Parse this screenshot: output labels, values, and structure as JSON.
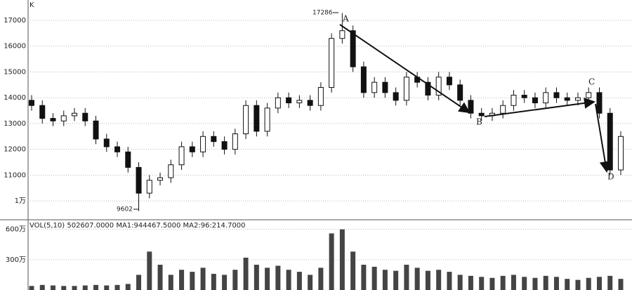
{
  "chart_data": [
    {
      "type": "candlestick",
      "y_axis_label": "K",
      "open": [
        13900,
        13700,
        13200,
        13100,
        13300,
        13400,
        13100,
        12400,
        12100,
        11900,
        11300,
        10300,
        10800,
        10900,
        11400,
        12100,
        11900,
        12500,
        12300,
        12000,
        12600,
        13700,
        12700,
        13600,
        14000,
        13800,
        13900,
        13700,
        14400,
        16300,
        16600,
        15200,
        14200,
        14600,
        14200,
        13900,
        14800,
        14600,
        14100,
        14800,
        14500,
        13900,
        13400,
        13300,
        13400,
        13700,
        14100,
        14000,
        13800,
        14200,
        14000,
        13900,
        14000,
        14200,
        13400,
        11200
      ],
      "high": [
        14100,
        13900,
        13400,
        13500,
        13600,
        13600,
        13300,
        12600,
        12300,
        12100,
        11500,
        11000,
        11100,
        11600,
        12300,
        12300,
        12700,
        12700,
        12500,
        12800,
        13900,
        13900,
        13800,
        14200,
        14200,
        14100,
        14100,
        14600,
        16500,
        17286,
        16800,
        15400,
        14800,
        14800,
        14400,
        15000,
        15000,
        14800,
        15000,
        15000,
        14700,
        14100,
        13600,
        13600,
        13900,
        14300,
        14300,
        14200,
        14400,
        14400,
        14200,
        14200,
        14400,
        14400,
        13600,
        12700
      ],
      "low": [
        13500,
        13000,
        12900,
        12900,
        13100,
        12900,
        12200,
        11900,
        11700,
        11100,
        9602,
        10100,
        10600,
        10700,
        11200,
        11700,
        11700,
        12100,
        11800,
        11800,
        12400,
        12500,
        12500,
        13400,
        13600,
        13600,
        13500,
        13500,
        14200,
        16100,
        15000,
        14000,
        14000,
        14000,
        13700,
        13700,
        14400,
        13900,
        13900,
        14300,
        13700,
        13200,
        13100,
        13100,
        13200,
        13500,
        13800,
        13600,
        13600,
        13800,
        13700,
        13700,
        13800,
        13200,
        11000,
        11000
      ],
      "close": [
        13700,
        13200,
        13100,
        13300,
        13400,
        13100,
        12400,
        12100,
        11900,
        11300,
        10300,
        10800,
        10900,
        11400,
        12100,
        11900,
        12500,
        12300,
        12000,
        12600,
        13700,
        12700,
        13600,
        14000,
        13800,
        13900,
        13700,
        14400,
        16300,
        16600,
        15200,
        14200,
        14600,
        14200,
        13900,
        14800,
        14600,
        14100,
        14800,
        14500,
        13900,
        13400,
        13300,
        13400,
        13700,
        14100,
        14000,
        13800,
        14200,
        14000,
        13900,
        14000,
        14200,
        13400,
        11200,
        12500
      ],
      "colors": {
        "up": "#ffffff",
        "down": "#111111",
        "edge": "#111111"
      },
      "ylim": [
        9350,
        17790
      ],
      "yticks": [
        17000,
        16000,
        15000,
        14000,
        13000,
        12000,
        11000,
        {
          "value": 10000,
          "label": "1万"
        }
      ],
      "grid": true,
      "annotations": [
        "17286",
        "9602",
        "A",
        "B",
        "C",
        "D"
      ]
    },
    {
      "type": "bar",
      "title": "VOL(5,10) 502607.0000 MA1:944467.5000 MA2:96:214.7000",
      "values": [
        40,
        50,
        45,
        40,
        40,
        45,
        50,
        45,
        50,
        60,
        150,
        380,
        250,
        150,
        200,
        180,
        220,
        160,
        150,
        200,
        320,
        250,
        220,
        240,
        200,
        180,
        150,
        220,
        560,
        600,
        380,
        250,
        230,
        200,
        190,
        250,
        220,
        190,
        200,
        180,
        150,
        140,
        130,
        120,
        140,
        150,
        130,
        120,
        140,
        130,
        110,
        100,
        120,
        130,
        140,
        110
      ],
      "color": "#444444",
      "ylim": [
        0,
        660
      ],
      "yticks": [
        {
          "value": 300,
          "label": "300万"
        },
        {
          "value": 600,
          "label": "600万"
        }
      ],
      "grid": true
    }
  ]
}
